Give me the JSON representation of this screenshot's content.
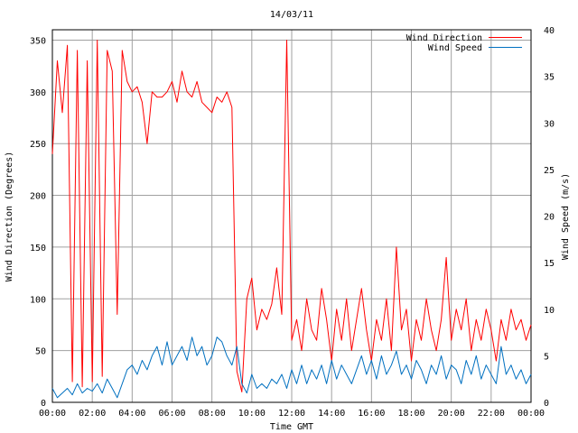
{
  "chart_data": {
    "type": "line",
    "title": "14/03/11",
    "xlabel": "Time GMT",
    "ylabel": "Wind Direction (Degrees)",
    "y2label": "Wind Speed (m/s)",
    "grid": true,
    "legend_position": "top-right",
    "xlim": [
      "00:00",
      "24:00"
    ],
    "x_ticks": [
      "00:00",
      "02:00",
      "04:00",
      "06:00",
      "08:00",
      "10:00",
      "12:00",
      "14:00",
      "16:00",
      "18:00",
      "20:00",
      "22:00",
      "00:00"
    ],
    "ylim": [
      0,
      360
    ],
    "y_ticks": [
      "0",
      "50",
      "100",
      "150",
      "200",
      "250",
      "300",
      "350"
    ],
    "y2lim": [
      0,
      40
    ],
    "y2_ticks": [
      "0",
      "5",
      "10",
      "15",
      "20",
      "25",
      "30",
      "35",
      "40"
    ],
    "x_hours": [
      0,
      0.25,
      0.5,
      0.75,
      1,
      1.25,
      1.5,
      1.75,
      2,
      2.25,
      2.5,
      2.75,
      3,
      3.25,
      3.5,
      3.75,
      4,
      4.25,
      4.5,
      4.75,
      5,
      5.25,
      5.5,
      5.75,
      6,
      6.25,
      6.5,
      6.75,
      7,
      7.25,
      7.5,
      7.75,
      8,
      8.25,
      8.5,
      8.75,
      9,
      9.25,
      9.5,
      9.75,
      10,
      10.25,
      10.5,
      10.75,
      11,
      11.25,
      11.5,
      11.75,
      12,
      12.25,
      12.5,
      12.75,
      13,
      13.25,
      13.5,
      13.75,
      14,
      14.25,
      14.5,
      14.75,
      15,
      15.25,
      15.5,
      15.75,
      16,
      16.25,
      16.5,
      16.75,
      17,
      17.25,
      17.5,
      17.75,
      18,
      18.25,
      18.5,
      18.75,
      19,
      19.25,
      19.5,
      19.75,
      20,
      20.25,
      20.5,
      20.75,
      21,
      21.25,
      21.5,
      21.75,
      22,
      22.25,
      22.5,
      22.75,
      23,
      23.25,
      23.5,
      23.75,
      24
    ],
    "series": [
      {
        "name": "Wind Direction",
        "color": "#ff0000",
        "axis": "left",
        "values": [
          240,
          330,
          280,
          345,
          20,
          340,
          15,
          330,
          20,
          350,
          25,
          340,
          320,
          85,
          340,
          310,
          300,
          305,
          290,
          250,
          300,
          295,
          295,
          300,
          310,
          290,
          320,
          300,
          295,
          310,
          290,
          285,
          280,
          295,
          290,
          300,
          285,
          30,
          10,
          100,
          120,
          70,
          90,
          80,
          95,
          130,
          85,
          350,
          60,
          80,
          50,
          100,
          70,
          60,
          110,
          80,
          40,
          90,
          60,
          100,
          50,
          80,
          110,
          70,
          40,
          80,
          60,
          100,
          50,
          150,
          70,
          90,
          40,
          80,
          60,
          100,
          70,
          50,
          80,
          140,
          60,
          90,
          70,
          100,
          50,
          80,
          60,
          90,
          70,
          40,
          80,
          60,
          90,
          70,
          80,
          60,
          75
        ]
      },
      {
        "name": "Wind Speed",
        "color": "#0070c0",
        "axis": "right",
        "values": [
          1.5,
          0.5,
          1,
          1.5,
          0.8,
          2,
          1,
          1.5,
          1.2,
          2,
          1,
          2.5,
          1.5,
          0.5,
          2,
          3.5,
          4,
          3,
          4.5,
          3.5,
          5,
          6,
          4,
          6.5,
          4,
          5,
          6,
          4.5,
          7,
          5,
          6,
          4,
          5,
          7,
          6.5,
          5,
          4,
          6,
          2,
          1,
          3,
          1.5,
          2,
          1.5,
          2.5,
          2,
          3,
          1.5,
          3.5,
          2,
          4,
          2,
          3.5,
          2.5,
          4,
          2,
          4.5,
          2.5,
          4,
          3,
          2,
          3.5,
          5,
          3,
          4.5,
          2.5,
          5,
          3,
          4,
          5.5,
          3,
          4,
          2.5,
          4.5,
          3.5,
          2,
          4,
          3,
          5,
          2.5,
          4,
          3.5,
          2,
          4.5,
          3,
          5,
          2.5,
          4,
          3,
          2,
          6,
          3,
          4,
          2.5,
          3.5,
          2,
          3
        ]
      }
    ]
  }
}
